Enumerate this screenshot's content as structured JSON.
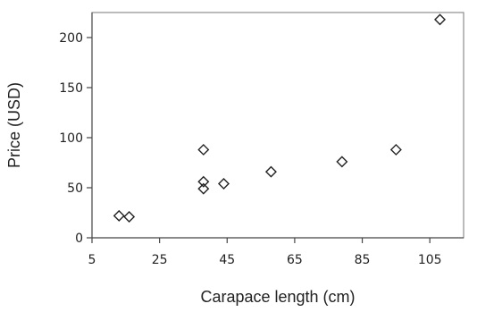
{
  "chart_data": {
    "type": "scatter",
    "title": "",
    "xlabel": "Carapace length (cm)",
    "ylabel": "Price (USD)",
    "xlim": [
      5,
      115
    ],
    "ylim": [
      0,
      225
    ],
    "xticks": [
      5,
      25,
      45,
      65,
      85,
      105
    ],
    "yticks": [
      0,
      50,
      100,
      150,
      200
    ],
    "grid": false,
    "legend": "none",
    "marker": "diamond-open",
    "series": [
      {
        "x": [
          13,
          16,
          38,
          38,
          38,
          44,
          58,
          79,
          95,
          108
        ],
        "y": [
          22,
          21,
          88,
          56,
          49,
          54,
          66,
          76,
          88,
          218
        ]
      }
    ]
  }
}
